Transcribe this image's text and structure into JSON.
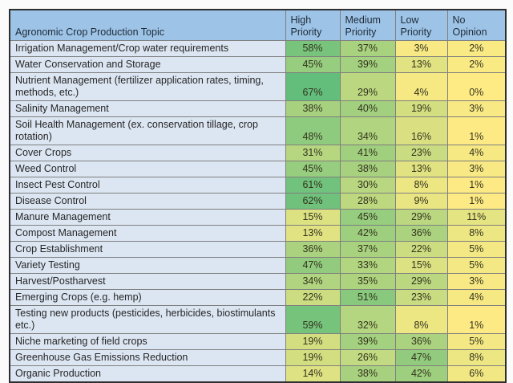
{
  "chart_data": {
    "type": "table",
    "topic_header": "Agronomic Crop Production Topic",
    "columns": [
      "High Priority",
      "Medium Priority",
      "Low Priority",
      "No Opinion"
    ],
    "value_format": "percent",
    "rows": [
      {
        "topic": "Irrigation Management/Crop water requirements",
        "values": [
          58,
          37,
          3,
          2
        ]
      },
      {
        "topic": "Water Conservation and Storage",
        "values": [
          45,
          39,
          13,
          2
        ]
      },
      {
        "topic": "Nutrient Management (fertilizer application rates, timing, methods, etc.)",
        "values": [
          67,
          29,
          4,
          0
        ]
      },
      {
        "topic": "Salinity Management",
        "values": [
          38,
          40,
          19,
          3
        ]
      },
      {
        "topic": "Soil Health Management (ex. conservation tillage, crop rotation)",
        "values": [
          48,
          34,
          16,
          1
        ]
      },
      {
        "topic": "Cover Crops",
        "values": [
          31,
          41,
          23,
          4
        ]
      },
      {
        "topic": "Weed Control",
        "values": [
          45,
          38,
          13,
          3
        ]
      },
      {
        "topic": "Insect Pest Control",
        "values": [
          61,
          30,
          8,
          1
        ]
      },
      {
        "topic": "Disease Control",
        "values": [
          62,
          28,
          9,
          1
        ]
      },
      {
        "topic": "Manure Management",
        "values": [
          15,
          45,
          29,
          11
        ]
      },
      {
        "topic": "Compost Management",
        "values": [
          13,
          42,
          36,
          8
        ]
      },
      {
        "topic": "Crop Establishment",
        "values": [
          36,
          37,
          22,
          5
        ]
      },
      {
        "topic": "Variety Testing",
        "values": [
          47,
          33,
          15,
          5
        ]
      },
      {
        "topic": "Harvest/Postharvest",
        "values": [
          34,
          35,
          29,
          3
        ]
      },
      {
        "topic": "Emerging Crops (e.g. hemp)",
        "values": [
          22,
          51,
          23,
          4
        ]
      },
      {
        "topic": "Testing new products (pesticides, herbicides, biostimulants etc.)",
        "values": [
          59,
          32,
          8,
          1
        ]
      },
      {
        "topic": "Niche marketing of field crops",
        "values": [
          19,
          39,
          36,
          5
        ]
      },
      {
        "topic": "Greenhouse Gas Emissions Reduction",
        "values": [
          19,
          26,
          47,
          8
        ]
      },
      {
        "topic": "Organic Production",
        "values": [
          14,
          38,
          42,
          6
        ]
      }
    ],
    "color_scale": {
      "min_value": 0,
      "max_value": 67,
      "min_color": "#FFEB84",
      "max_color": "#63BE7B"
    },
    "colors": {
      "header_bg": "#9DC3E6",
      "topic_cell_bg": "#DCE6F2",
      "grid_border": "#7F7F7F",
      "outer_border": "#2E2E2E",
      "text": "#262626"
    },
    "legend_position": "none",
    "grid": true
  }
}
